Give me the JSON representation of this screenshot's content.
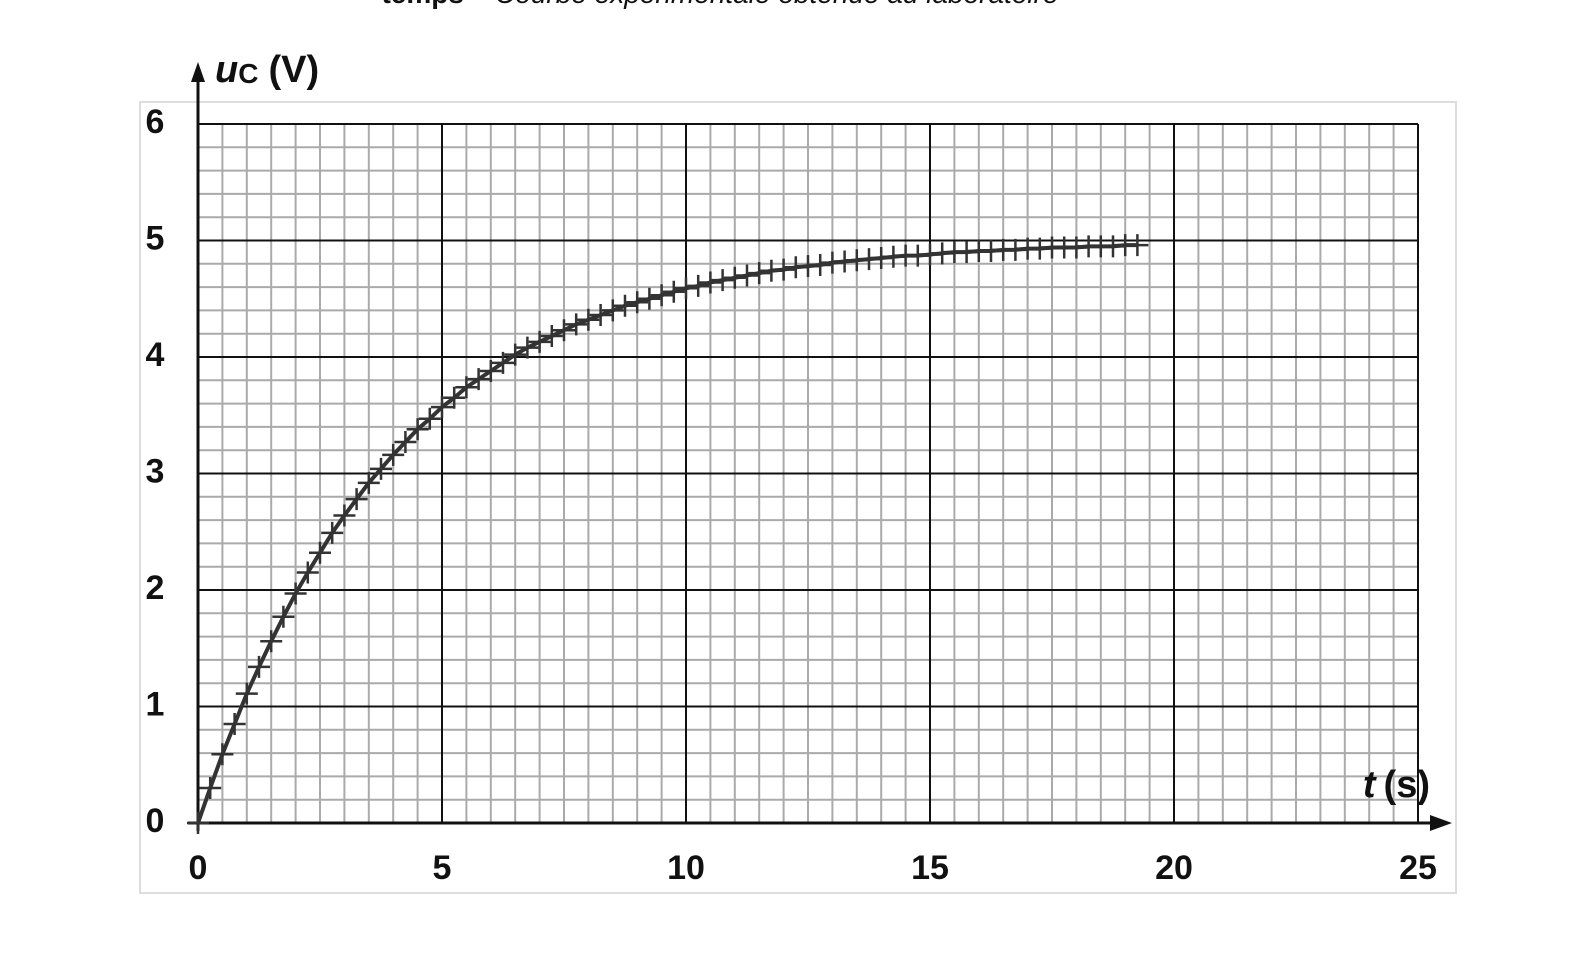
{
  "chart_data": {
    "type": "scatter",
    "title": [
      "temps",
      "– Courbe expérimentale obtenue au laboratoire"
    ],
    "ylabel": {
      "symbol": "u",
      "subscript": "C",
      "unit": "(V)"
    },
    "xlabel": {
      "symbol": "t",
      "unit": "(s)"
    },
    "xlim": [
      0,
      25
    ],
    "xticks": [
      0,
      5,
      10,
      15,
      20,
      25
    ],
    "ylim": [
      0,
      6
    ],
    "yticks": [
      0,
      1,
      2,
      3,
      4,
      5,
      6
    ],
    "grid": true,
    "minor_grid": {
      "x": 0.5,
      "y": 0.2
    },
    "series": [
      {
        "color": "#333333",
        "x": [
          0,
          0.25,
          0.5,
          0.75,
          1,
          1.25,
          1.5,
          1.75,
          2,
          2.25,
          2.5,
          2.75,
          3,
          3.25,
          3.5,
          3.75,
          4,
          4.25,
          4.5,
          4.75,
          5,
          5.25,
          5.5,
          5.75,
          6,
          6.25,
          6.5,
          6.75,
          7,
          7.25,
          7.5,
          7.75,
          8,
          8.25,
          8.5,
          8.75,
          9,
          9.25,
          9.5,
          9.75,
          10,
          10.25,
          10.5,
          10.75,
          11,
          11.25,
          11.5,
          11.75,
          12,
          12.25,
          12.5,
          12.75,
          13,
          13.25,
          13.5,
          13.75,
          14,
          14.25,
          14.5,
          14.75,
          15,
          15.25,
          15.5,
          15.75,
          16,
          16.25,
          16.5,
          16.75,
          17,
          17.25,
          17.5,
          17.75,
          18,
          18.25,
          18.5,
          18.75,
          19,
          19.25
        ],
        "values": [
          0,
          0.3,
          0.59,
          0.85,
          1.11,
          1.34,
          1.56,
          1.77,
          1.97,
          2.15,
          2.32,
          2.49,
          2.64,
          2.78,
          2.92,
          3.04,
          3.16,
          3.27,
          3.38,
          3.47,
          3.57,
          3.65,
          3.74,
          3.81,
          3.88,
          3.95,
          4.02,
          4.08,
          4.13,
          4.18,
          4.23,
          4.28,
          4.32,
          4.36,
          4.4,
          4.44,
          4.47,
          4.5,
          4.53,
          4.56,
          4.59,
          4.61,
          4.64,
          4.66,
          4.68,
          4.7,
          4.72,
          4.74,
          4.75,
          4.77,
          4.78,
          4.79,
          4.81,
          4.82,
          4.83,
          4.84,
          4.85,
          4.86,
          4.87,
          4.87,
          4.88,
          4.89,
          4.9,
          4.9,
          4.91,
          4.91,
          4.92,
          4.92,
          4.93,
          4.93,
          4.94,
          4.94,
          4.94,
          4.95,
          4.95,
          4.95,
          4.96,
          4.96
        ]
      }
    ]
  }
}
